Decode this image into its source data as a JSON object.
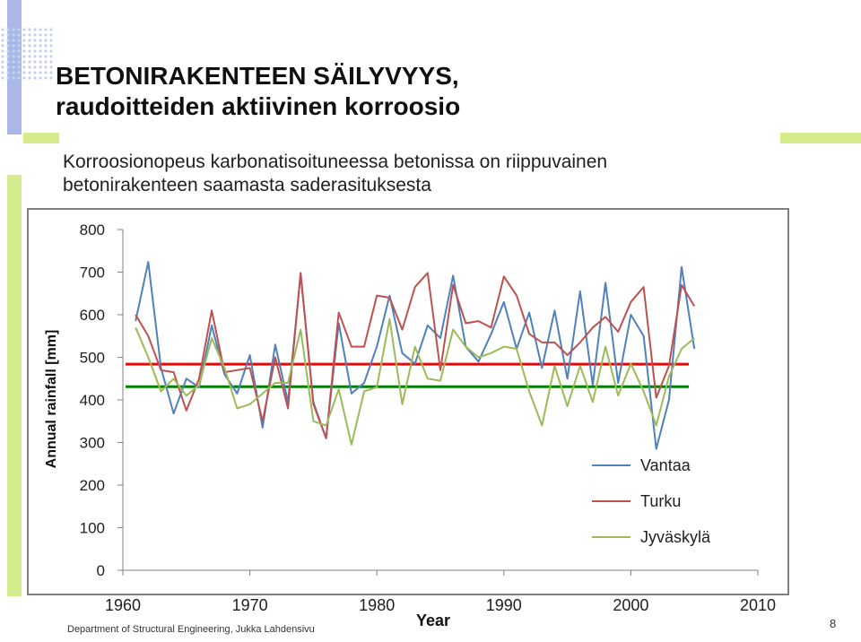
{
  "slide": {
    "title_line1": "BETONIRAKENTEEN SÄILYVYYS,",
    "title_line2": "raudoitteiden aktiivinen korroosio",
    "subtitle_line1": "Korroosionopeus karbonatisoituneessa betonissa on riippuvainen",
    "subtitle_line2": "betonirakenteen saamasta saderasituksesta",
    "footer": "Department of Structural Engineering, Jukka Lahdensivu",
    "page_number": "8"
  },
  "chart_data": {
    "type": "line",
    "xlabel": "Year",
    "ylabel": "Annual rainfall [mm]",
    "xlim": [
      1960,
      2010
    ],
    "ylim": [
      0,
      800
    ],
    "x_ticks": [
      "1960",
      "1970",
      "1980",
      "1990",
      "2000",
      "2010"
    ],
    "y_ticks": [
      "0",
      "100",
      "200",
      "300",
      "400",
      "500",
      "600",
      "700",
      "800"
    ],
    "legend_position": "bottom-right",
    "x": [
      1961,
      1962,
      1963,
      1964,
      1965,
      1966,
      1967,
      1968,
      1969,
      1970,
      1971,
      1972,
      1973,
      1974,
      1975,
      1976,
      1977,
      1978,
      1979,
      1980,
      1981,
      1982,
      1983,
      1984,
      1985,
      1986,
      1987,
      1988,
      1989,
      1990,
      1991,
      1992,
      1993,
      1994,
      1995,
      1996,
      1997,
      1998,
      1999,
      2000,
      2001,
      2002,
      2003,
      2004,
      2005
    ],
    "series": [
      {
        "name": "Vantaa",
        "color": "#4f81bd",
        "values": [
          585,
          724,
          475,
          368,
          450,
          430,
          575,
          460,
          415,
          505,
          335,
          530,
          395,
          695,
          395,
          310,
          580,
          415,
          440,
          525,
          645,
          510,
          485,
          575,
          545,
          692,
          525,
          490,
          555,
          630,
          520,
          605,
          475,
          610,
          450,
          655,
          435,
          675,
          440,
          600,
          550,
          285,
          400,
          712,
          520
        ]
      },
      {
        "name": "Turku",
        "color": "#c0504d",
        "values": [
          600,
          550,
          470,
          465,
          375,
          450,
          610,
          465,
          470,
          475,
          350,
          500,
          380,
          698,
          390,
          310,
          605,
          525,
          525,
          645,
          640,
          565,
          665,
          698,
          470,
          670,
          580,
          585,
          570,
          690,
          645,
          555,
          535,
          535,
          505,
          535,
          570,
          595,
          560,
          630,
          665,
          405,
          480,
          670,
          620
        ]
      },
      {
        "name": "Jyväskylä",
        "color": "#9bbb59",
        "values": [
          570,
          500,
          420,
          450,
          410,
          435,
          545,
          475,
          380,
          390,
          415,
          440,
          440,
          565,
          350,
          340,
          425,
          295,
          420,
          430,
          590,
          390,
          525,
          450,
          445,
          565,
          525,
          500,
          510,
          525,
          520,
          420,
          340,
          480,
          385,
          480,
          395,
          525,
          410,
          485,
          420,
          340,
          455,
          520,
          545
        ]
      }
    ],
    "reference_lines": [
      {
        "color": "#ff0000",
        "y": 484
      },
      {
        "color": "#008000",
        "y": 431
      }
    ]
  }
}
